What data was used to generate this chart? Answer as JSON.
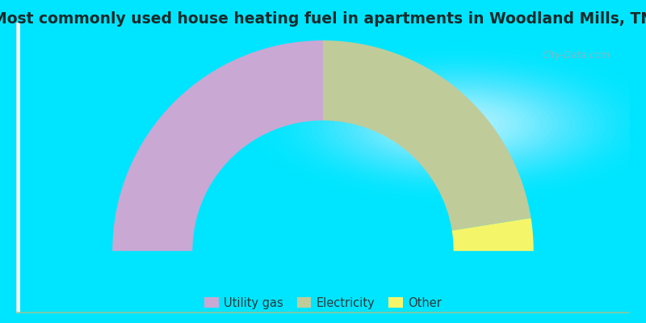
{
  "title": "Most commonly used house heating fuel in apartments in Woodland Mills, TN",
  "categories": [
    "Utility gas",
    "Electricity",
    "Other"
  ],
  "values": [
    50,
    45,
    5
  ],
  "colors": [
    "#c9a8d4",
    "#c0cb9a",
    "#f5f56a"
  ],
  "border_color": "#00e5ff",
  "title_fontsize": 13.5,
  "legend_fontsize": 10.5,
  "watermark": "City-Data.com",
  "bg_colors": [
    "#c5dfd8",
    "#d5e8d5",
    "#deeee8",
    "#e8f0e8",
    "#f0f5ee",
    "#f8fbf8",
    "#ffffff"
  ],
  "outer_r": 1.0,
  "inner_r": 0.62
}
